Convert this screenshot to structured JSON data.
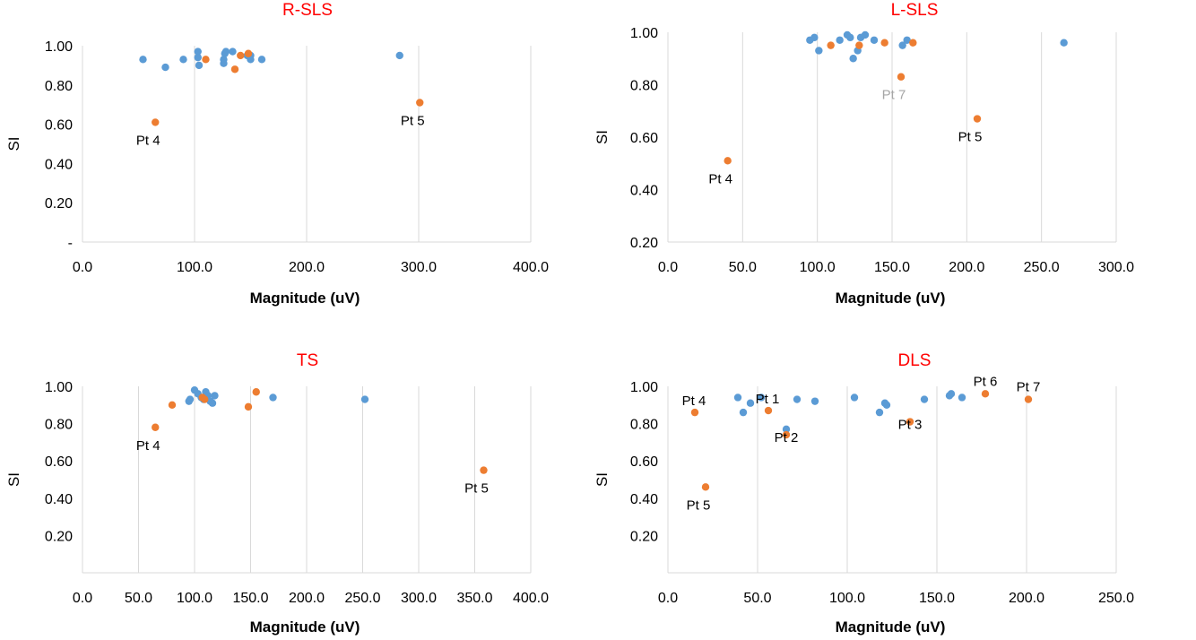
{
  "colors": {
    "series_blue": "#5b9bd5",
    "series_orange": "#ed7d31",
    "title_red": "#ff0000",
    "grid": "#d9d9d9",
    "text": "#000000",
    "annotation_gray": "#a6a6a6"
  },
  "chart_data": [
    {
      "type": "scatter",
      "title": "R-SLS",
      "xlabel": "Magnitude (uV)",
      "ylabel": "SI",
      "xlim": [
        0,
        400
      ],
      "ylim": [
        0,
        1.0
      ],
      "x_ticks": [
        0,
        100,
        200,
        300,
        400
      ],
      "x_tick_labels": [
        "0.0",
        "100.0",
        "200.0",
        "300.0",
        "400.0"
      ],
      "y_ticks": [
        0,
        0.2,
        0.4,
        0.6,
        0.8,
        1.0
      ],
      "y_tick_labels": [
        "-",
        "0.20",
        "0.40",
        "0.60",
        "0.80",
        "1.00"
      ],
      "grid": "vertical",
      "series": [
        {
          "color": "#5b9bd5",
          "points": [
            [
              54,
              0.93
            ],
            [
              74,
              0.89
            ],
            [
              90,
              0.93
            ],
            [
              103,
              0.97
            ],
            [
              103,
              0.94
            ],
            [
              104,
              0.9
            ],
            [
              126,
              0.93
            ],
            [
              126,
              0.91
            ],
            [
              127,
              0.96
            ],
            [
              128,
              0.97
            ],
            [
              134,
              0.97
            ],
            [
              147,
              0.95
            ],
            [
              150,
              0.93
            ],
            [
              150,
              0.95
            ],
            [
              160,
              0.93
            ],
            [
              283,
              0.95
            ]
          ]
        },
        {
          "color": "#ed7d31",
          "points": [
            [
              65,
              0.61
            ],
            [
              110,
              0.93
            ],
            [
              136,
              0.88
            ],
            [
              141,
              0.95
            ],
            [
              148,
              0.96
            ],
            [
              301,
              0.71
            ]
          ]
        }
      ],
      "annotations": [
        {
          "text": "Pt 4",
          "x": 65,
          "y": 0.61,
          "pos": "below-left",
          "color": "#000000"
        },
        {
          "text": "Pt 5",
          "x": 301,
          "y": 0.71,
          "pos": "below-left",
          "color": "#000000"
        }
      ]
    },
    {
      "type": "scatter",
      "title": "L-SLS",
      "xlabel": "Magnitude (uV)",
      "ylabel": "SI",
      "xlim": [
        0,
        300
      ],
      "ylim": [
        0.2,
        1.0
      ],
      "x_ticks": [
        0,
        50,
        100,
        150,
        200,
        250,
        300
      ],
      "x_tick_labels": [
        "0.0",
        "50.0",
        "100.0",
        "150.0",
        "200.0",
        "250.0",
        "300.0"
      ],
      "y_ticks": [
        0.2,
        0.4,
        0.6,
        0.8,
        1.0
      ],
      "y_tick_labels": [
        "0.20",
        "0.40",
        "0.60",
        "0.80",
        "1.00"
      ],
      "grid": "vertical",
      "series": [
        {
          "color": "#5b9bd5",
          "points": [
            [
              95,
              0.97
            ],
            [
              98,
              0.98
            ],
            [
              101,
              0.93
            ],
            [
              115,
              0.97
            ],
            [
              120,
              0.99
            ],
            [
              122,
              0.98
            ],
            [
              124,
              0.9
            ],
            [
              127,
              0.93
            ],
            [
              129,
              0.98
            ],
            [
              132,
              0.99
            ],
            [
              138,
              0.97
            ],
            [
              157,
              0.95
            ],
            [
              160,
              0.97
            ],
            [
              265,
              0.96
            ]
          ]
        },
        {
          "color": "#ed7d31",
          "points": [
            [
              40,
              0.51
            ],
            [
              109,
              0.95
            ],
            [
              128,
              0.95
            ],
            [
              145,
              0.96
            ],
            [
              156,
              0.83
            ],
            [
              164,
              0.96
            ],
            [
              207,
              0.67
            ]
          ]
        }
      ],
      "annotations": [
        {
          "text": "Pt 4",
          "x": 40,
          "y": 0.51,
          "pos": "below-left",
          "color": "#000000"
        },
        {
          "text": "Pt 7",
          "x": 156,
          "y": 0.83,
          "pos": "below-left",
          "color": "#a6a6a6"
        },
        {
          "text": "Pt 5",
          "x": 207,
          "y": 0.67,
          "pos": "below-left",
          "color": "#000000"
        }
      ]
    },
    {
      "type": "scatter",
      "title": "TS",
      "xlabel": "Magnitude (uV)",
      "ylabel": "SI",
      "xlim": [
        0,
        400
      ],
      "ylim": [
        0,
        1.0
      ],
      "x_ticks": [
        0,
        50,
        100,
        150,
        200,
        250,
        300,
        350,
        400
      ],
      "x_tick_labels": [
        "0.0",
        "50.0",
        "100.0",
        "150.0",
        "200.0",
        "250.0",
        "300.0",
        "350.0",
        "400.0"
      ],
      "y_ticks": [
        0.2,
        0.4,
        0.6,
        0.8,
        1.0
      ],
      "y_tick_labels": [
        "0.20",
        "0.40",
        "0.60",
        "0.80",
        "1.00"
      ],
      "grid": "vertical",
      "series": [
        {
          "color": "#5b9bd5",
          "points": [
            [
              95,
              0.92
            ],
            [
              96,
              0.93
            ],
            [
              100,
              0.98
            ],
            [
              103,
              0.96
            ],
            [
              106,
              0.94
            ],
            [
              108,
              0.93
            ],
            [
              110,
              0.97
            ],
            [
              112,
              0.95
            ],
            [
              114,
              0.92
            ],
            [
              116,
              0.91
            ],
            [
              118,
              0.95
            ],
            [
              170,
              0.94
            ],
            [
              252,
              0.93
            ]
          ]
        },
        {
          "color": "#ed7d31",
          "points": [
            [
              65,
              0.78
            ],
            [
              80,
              0.9
            ],
            [
              107,
              0.94
            ],
            [
              109,
              0.93
            ],
            [
              148,
              0.89
            ],
            [
              155,
              0.97
            ],
            [
              358,
              0.55
            ]
          ]
        }
      ],
      "annotations": [
        {
          "text": "Pt 4",
          "x": 65,
          "y": 0.78,
          "pos": "below-left",
          "color": "#000000"
        },
        {
          "text": "Pt 5",
          "x": 358,
          "y": 0.55,
          "pos": "below-left",
          "color": "#000000"
        }
      ]
    },
    {
      "type": "scatter",
      "title": "DLS",
      "xlabel": "Magnitude (uV)",
      "ylabel": "SI",
      "xlim": [
        0,
        250
      ],
      "ylim": [
        0,
        1.0
      ],
      "x_ticks": [
        0,
        50,
        100,
        150,
        200,
        250
      ],
      "x_tick_labels": [
        "0.0",
        "50.0",
        "100.0",
        "150.0",
        "200.0",
        "250.0"
      ],
      "y_ticks": [
        0.2,
        0.4,
        0.6,
        0.8,
        1.0
      ],
      "y_tick_labels": [
        "0.20",
        "0.40",
        "0.60",
        "0.80",
        "1.00"
      ],
      "grid": "vertical",
      "series": [
        {
          "color": "#5b9bd5",
          "points": [
            [
              39,
              0.94
            ],
            [
              42,
              0.86
            ],
            [
              46,
              0.91
            ],
            [
              52,
              0.94
            ],
            [
              66,
              0.77
            ],
            [
              72,
              0.93
            ],
            [
              82,
              0.92
            ],
            [
              104,
              0.94
            ],
            [
              118,
              0.86
            ],
            [
              121,
              0.91
            ],
            [
              122,
              0.9
            ],
            [
              143,
              0.93
            ],
            [
              157,
              0.95
            ],
            [
              158,
              0.96
            ],
            [
              164,
              0.94
            ]
          ]
        },
        {
          "color": "#ed7d31",
          "points": [
            [
              15,
              0.86
            ],
            [
              21,
              0.46
            ],
            [
              56,
              0.87
            ],
            [
              66,
              0.74
            ],
            [
              135,
              0.81
            ],
            [
              177,
              0.96
            ],
            [
              201,
              0.93
            ]
          ]
        }
      ],
      "annotations": [
        {
          "text": "Pt 4",
          "x": 15,
          "y": 0.86,
          "pos": "above-left",
          "color": "#000000"
        },
        {
          "text": "Pt 5",
          "x": 21,
          "y": 0.46,
          "pos": "below-left",
          "color": "#000000"
        },
        {
          "text": "Pt 1",
          "x": 56,
          "y": 0.87,
          "pos": "above-left",
          "color": "#000000"
        },
        {
          "text": "Pt 2",
          "x": 66,
          "y": 0.74,
          "pos": "center",
          "color": "#000000"
        },
        {
          "text": "Pt 3",
          "x": 135,
          "y": 0.81,
          "pos": "center",
          "color": "#000000"
        },
        {
          "text": "Pt 6",
          "x": 177,
          "y": 0.96,
          "pos": "above",
          "color": "#000000"
        },
        {
          "text": "Pt 7",
          "x": 201,
          "y": 0.93,
          "pos": "above",
          "color": "#000000"
        }
      ]
    }
  ]
}
